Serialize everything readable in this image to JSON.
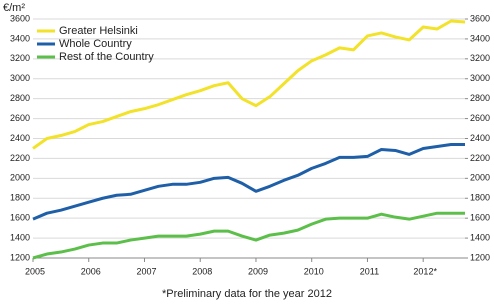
{
  "chart_data": {
    "type": "line",
    "y_label": "€/m²",
    "footnote": "*Preliminary data for the year 2012",
    "x": [
      2005,
      2005.25,
      2005.5,
      2005.75,
      2006,
      2006.25,
      2006.5,
      2006.75,
      2007,
      2007.25,
      2007.5,
      2007.75,
      2008,
      2008.25,
      2008.5,
      2008.75,
      2009,
      2009.25,
      2009.5,
      2009.75,
      2010,
      2010.25,
      2010.5,
      2010.75,
      2011,
      2011.25,
      2011.5,
      2011.75,
      2012,
      2012.25,
      2012.5,
      2012.75
    ],
    "series": [
      {
        "name": "Greater Helsinki",
        "color": "#f2e22a",
        "values": [
          2300,
          2400,
          2430,
          2470,
          2540,
          2570,
          2620,
          2670,
          2700,
          2740,
          2790,
          2840,
          2880,
          2930,
          2960,
          2800,
          2730,
          2820,
          2950,
          3080,
          3180,
          3240,
          3310,
          3290,
          3430,
          3460,
          3420,
          3390,
          3520,
          3500,
          3580,
          3570
        ]
      },
      {
        "name": "Whole Country",
        "color": "#1f5fa8",
        "values": [
          1590,
          1650,
          1680,
          1720,
          1760,
          1800,
          1830,
          1840,
          1880,
          1920,
          1940,
          1940,
          1960,
          2000,
          2010,
          1950,
          1870,
          1920,
          1980,
          2030,
          2100,
          2150,
          2210,
          2210,
          2220,
          2290,
          2280,
          2240,
          2300,
          2320,
          2340,
          2340
        ]
      },
      {
        "name": "Rest of the Country",
        "color": "#5cbf4a",
        "values": [
          1200,
          1240,
          1260,
          1290,
          1330,
          1350,
          1350,
          1380,
          1400,
          1420,
          1420,
          1420,
          1440,
          1470,
          1470,
          1420,
          1380,
          1430,
          1450,
          1480,
          1540,
          1590,
          1600,
          1600,
          1600,
          1640,
          1610,
          1590,
          1620,
          1650,
          1650,
          1650
        ]
      }
    ],
    "xlim": [
      2005,
      2012.75
    ],
    "xticks": [
      2005,
      2006,
      2007,
      2008,
      2009,
      2010,
      2011,
      {
        "value": 2012,
        "label": "2012*"
      }
    ],
    "ylim": [
      1200,
      3600
    ],
    "yticks": [
      1200,
      1400,
      1600,
      1800,
      2000,
      2200,
      2400,
      2600,
      2800,
      3000,
      3200,
      3400,
      3600
    ],
    "y2lim": [
      1200,
      3600
    ],
    "y2ticks": [
      1200,
      1400,
      1600,
      1800,
      2000,
      2200,
      2400,
      2600,
      2800,
      3000,
      3200,
      3400,
      3600
    ],
    "grid": true,
    "legend": "top-left"
  }
}
